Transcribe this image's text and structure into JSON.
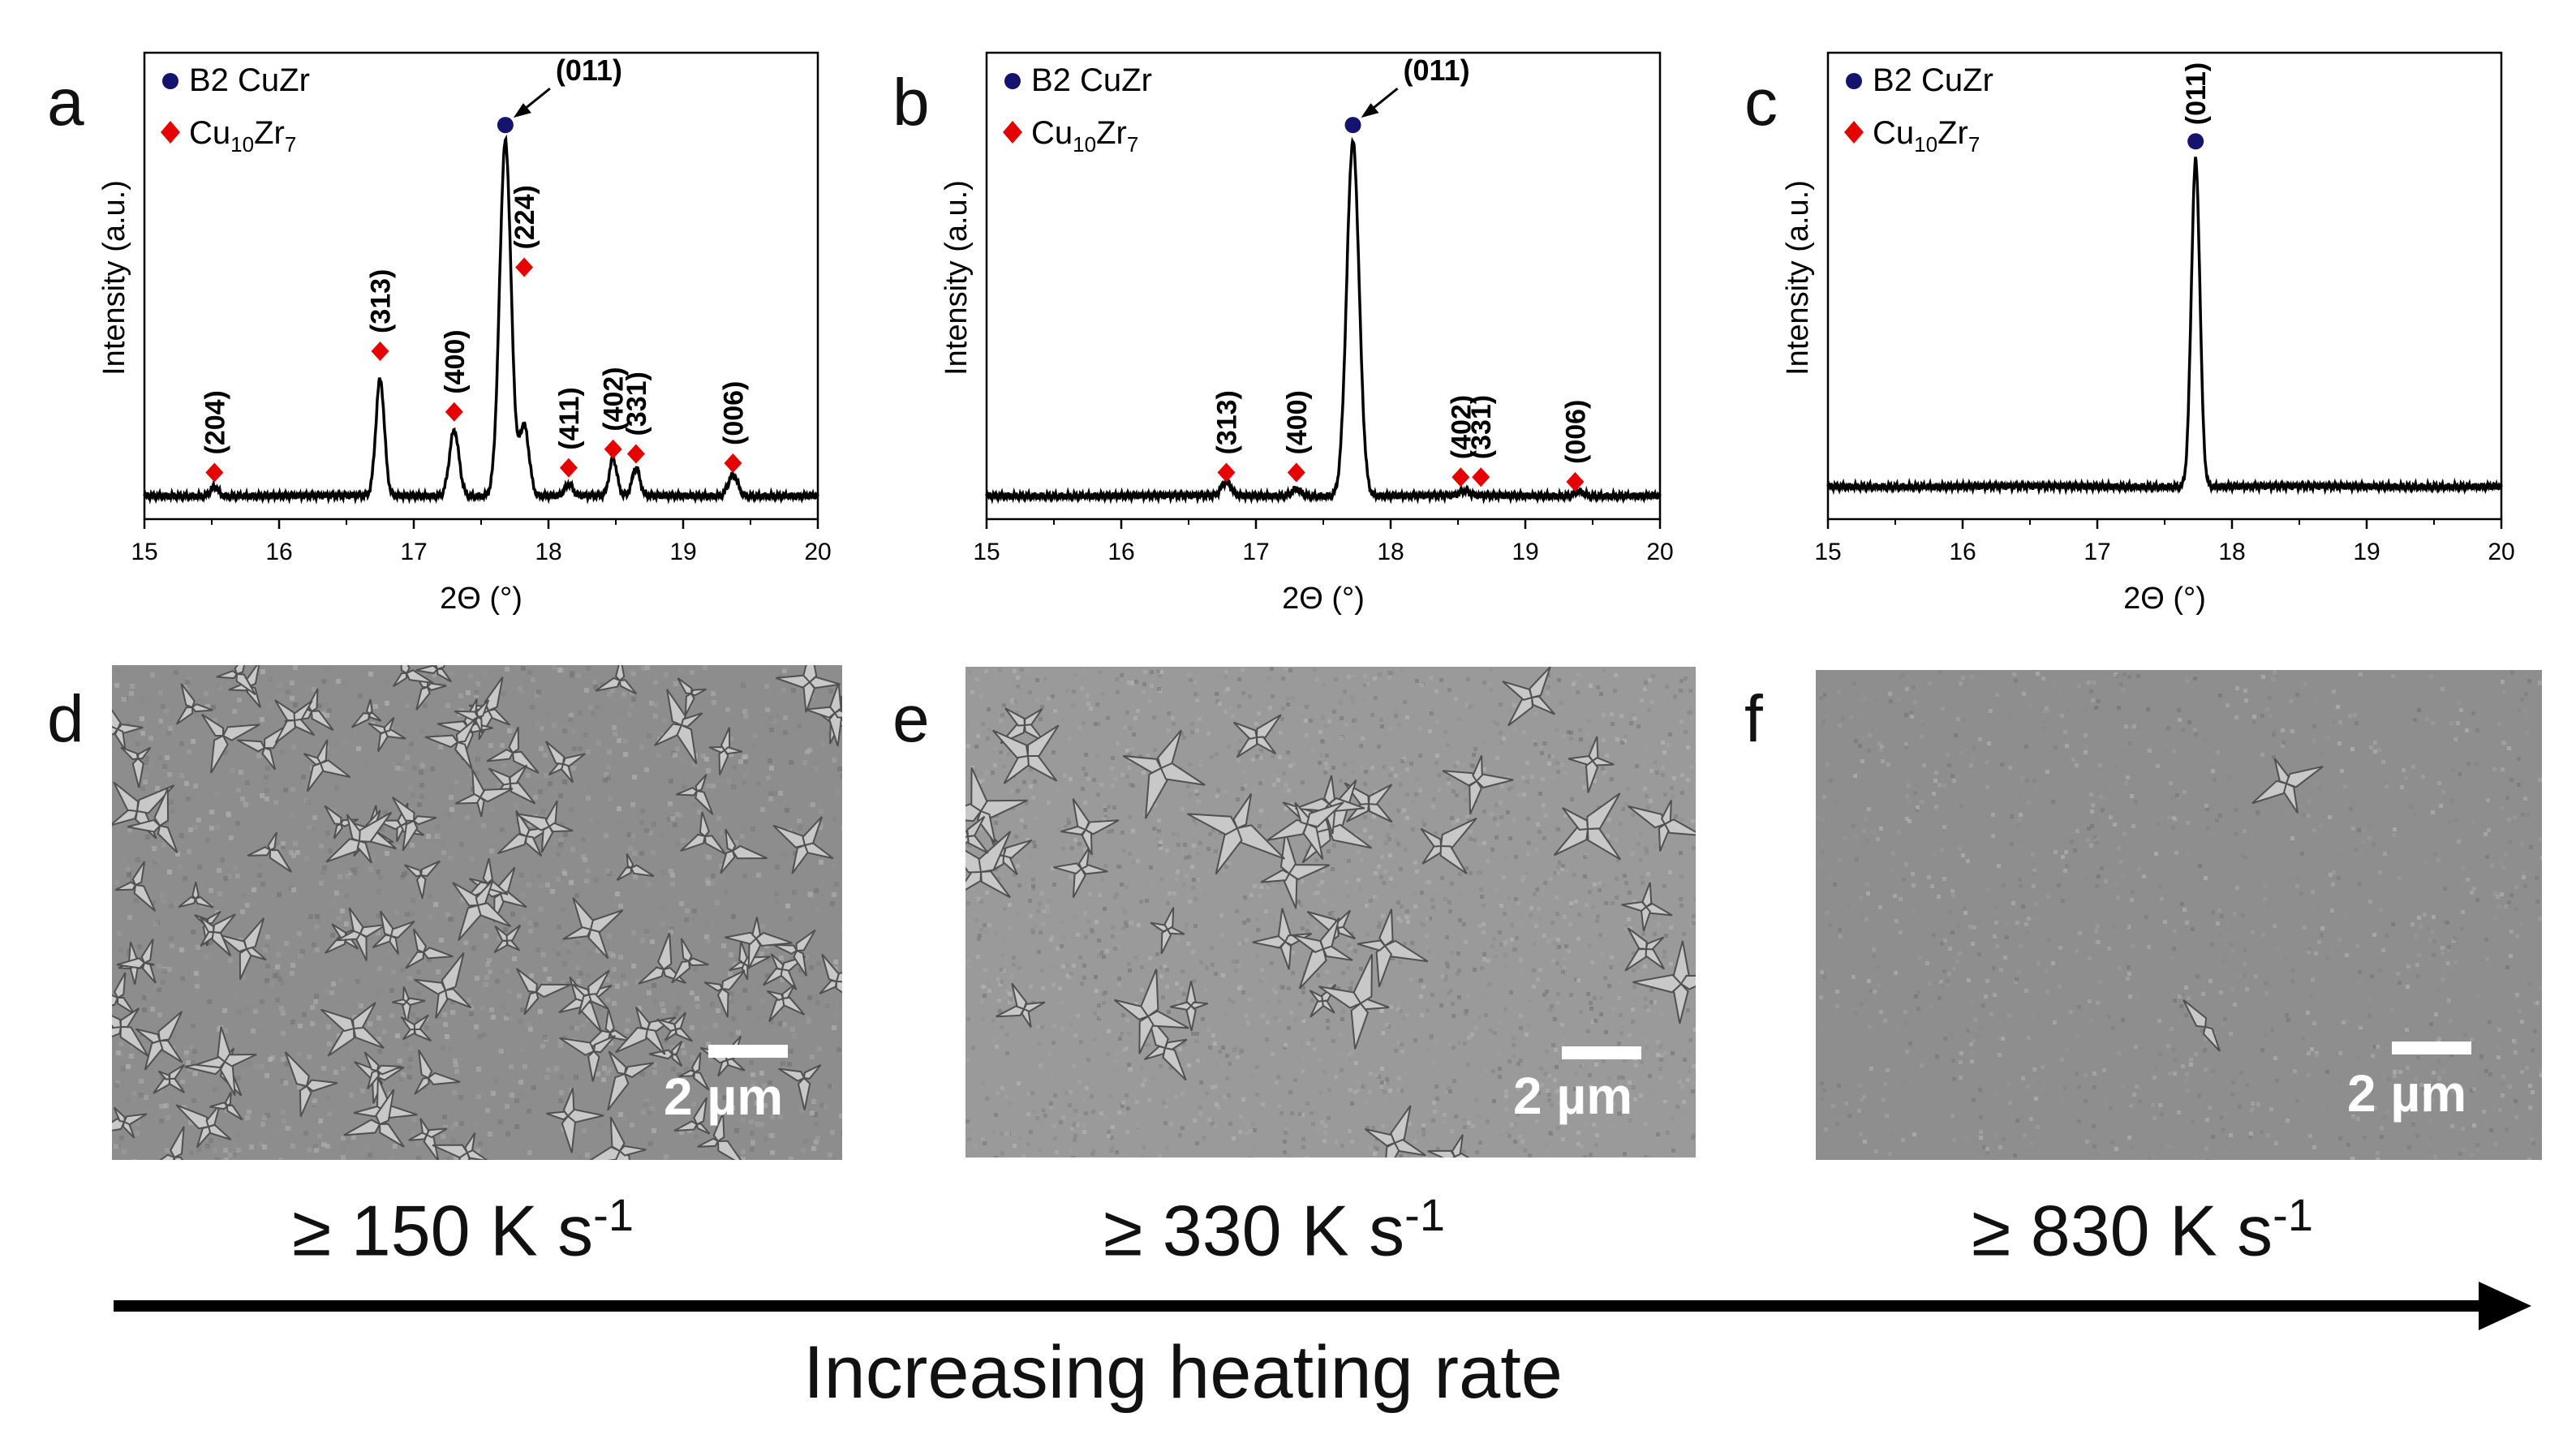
{
  "figure": {
    "labels": [
      "a",
      "b",
      "c",
      "d",
      "e",
      "f"
    ],
    "rates": [
      {
        "prefix": "≥ 150 K s",
        "exp": "-1"
      },
      {
        "prefix": "≥ 330 K s",
        "exp": "-1"
      },
      {
        "prefix": "≥ 830 K s",
        "exp": "-1"
      }
    ],
    "scale_label": "2 µm",
    "caption": "Increasing heating rate",
    "colors": {
      "b2": "#14146e",
      "cu10zr7": "#e60000",
      "line": "#000000"
    }
  },
  "chart_data": [
    {
      "type": "line",
      "panel": "a",
      "xlabel": "2Θ (°)",
      "ylabel": "Intensity (a.u.)",
      "xlim": [
        15,
        20
      ],
      "ylim": [
        0,
        1
      ],
      "xticks": [
        "15",
        "16",
        "17",
        "18",
        "19",
        "20"
      ],
      "legend": [
        {
          "label": "B2 CuZr",
          "marker": "circle"
        },
        {
          "label_base": "Cu",
          "sub1": "10",
          "mid": "Zr",
          "sub2": "7",
          "marker": "diamond"
        }
      ],
      "baseline": 0.05,
      "peaks": [
        {
          "x": 15.52,
          "h": 0.02,
          "w": 0.04
        },
        {
          "x": 16.75,
          "h": 0.25,
          "w": 0.045
        },
        {
          "x": 17.3,
          "h": 0.14,
          "w": 0.05
        },
        {
          "x": 17.68,
          "h": 0.76,
          "w": 0.06
        },
        {
          "x": 17.82,
          "h": 0.15,
          "w": 0.05
        },
        {
          "x": 18.15,
          "h": 0.025,
          "w": 0.04
        },
        {
          "x": 18.48,
          "h": 0.08,
          "w": 0.04
        },
        {
          "x": 18.65,
          "h": 0.06,
          "w": 0.04
        },
        {
          "x": 19.37,
          "h": 0.045,
          "w": 0.05
        }
      ],
      "annotations": [
        {
          "label": "(204)",
          "x": 15.52,
          "y": 0.12,
          "marker": "diamond",
          "my": 0.1
        },
        {
          "label": "(313)",
          "x": 16.75,
          "y": 0.39,
          "marker": "diamond",
          "my": 0.36
        },
        {
          "label": "(400)",
          "x": 17.3,
          "y": 0.26,
          "marker": "diamond",
          "my": 0.23
        },
        {
          "label": "(224)",
          "x": 17.82,
          "y": 0.57,
          "marker": "diamond",
          "my": 0.54
        },
        {
          "label": "(411)",
          "x": 18.15,
          "y": 0.14,
          "marker": "diamond",
          "my": 0.11
        },
        {
          "label": "(402)",
          "x": 18.48,
          "y": 0.18,
          "marker": "diamond",
          "my": 0.15
        },
        {
          "label": "(331)",
          "x": 18.65,
          "y": 0.17,
          "marker": "diamond",
          "my": 0.14
        },
        {
          "label": "(006)",
          "x": 19.37,
          "y": 0.15,
          "marker": "diamond",
          "my": 0.12
        }
      ],
      "top_peak": {
        "label": "(011)",
        "x": 17.68,
        "y": 0.845,
        "arrow": true
      }
    },
    {
      "type": "line",
      "panel": "b",
      "xlabel": "2Θ (°)",
      "ylabel": "Intensity (a.u.)",
      "xlim": [
        15,
        20
      ],
      "ylim": [
        0,
        1
      ],
      "xticks": [
        "15",
        "16",
        "17",
        "18",
        "19",
        "20"
      ],
      "legend": [
        {
          "label": "B2 CuZr",
          "marker": "circle"
        },
        {
          "label_base": "Cu",
          "sub1": "10",
          "mid": "Zr",
          "sub2": "7",
          "marker": "diamond"
        }
      ],
      "baseline": 0.05,
      "peaks": [
        {
          "x": 16.78,
          "h": 0.03,
          "w": 0.05
        },
        {
          "x": 17.3,
          "h": 0.015,
          "w": 0.05
        },
        {
          "x": 17.72,
          "h": 0.76,
          "w": 0.065
        },
        {
          "x": 18.55,
          "h": 0.01,
          "w": 0.05
        },
        {
          "x": 19.4,
          "h": 0.01,
          "w": 0.05
        }
      ],
      "annotations": [
        {
          "label": "(313)",
          "x": 16.78,
          "y": 0.13,
          "marker": "diamond",
          "my": 0.1
        },
        {
          "label": "(400)",
          "x": 17.3,
          "y": 0.13,
          "marker": "diamond",
          "my": 0.1
        },
        {
          "label": "(402)",
          "x": 18.52,
          "y": 0.12,
          "marker": "diamond",
          "my": 0.09
        },
        {
          "label": "(331)",
          "x": 18.67,
          "y": 0.12,
          "marker": "diamond",
          "my": 0.09
        },
        {
          "label": "(006)",
          "x": 19.37,
          "y": 0.11,
          "marker": "diamond",
          "my": 0.08
        }
      ],
      "top_peak": {
        "label": "(011)",
        "x": 17.72,
        "y": 0.845,
        "arrow": true
      }
    },
    {
      "type": "line",
      "panel": "c",
      "xlabel": "2Θ (°)",
      "ylabel": "Intensity (a.u.)",
      "xlim": [
        15,
        20
      ],
      "ylim": [
        0,
        1
      ],
      "xticks": [
        "15",
        "16",
        "17",
        "18",
        "19",
        "20"
      ],
      "legend": [
        {
          "label": "B2 CuZr",
          "marker": "circle"
        },
        {
          "label_base": "Cu",
          "sub1": "10",
          "mid": "Zr",
          "sub2": "7",
          "marker": "diamond"
        }
      ],
      "baseline": 0.07,
      "peaks": [
        {
          "x": 17.73,
          "h": 0.7,
          "w": 0.045
        }
      ],
      "annotations": [],
      "top_peak": {
        "label": "(011)",
        "x": 17.73,
        "y": 0.81,
        "arrow": false
      }
    }
  ]
}
